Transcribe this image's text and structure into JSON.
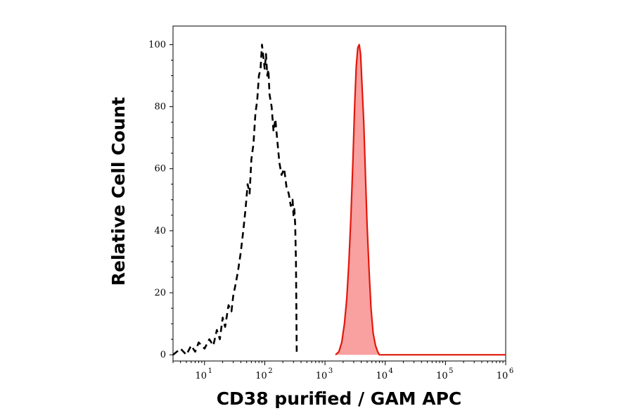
{
  "chart_data": {
    "type": "area",
    "xlabel": "CD38 purified / GAM APC",
    "ylabel": "Relative Cell Count",
    "x_scale": "log",
    "xlim": [
      3,
      1000000
    ],
    "ylim": [
      -2,
      106
    ],
    "grid": false,
    "legend": "none",
    "x_ticks": [
      {
        "base": "10",
        "exp": "1",
        "value": 10
      },
      {
        "base": "10",
        "exp": "2",
        "value": 100
      },
      {
        "base": "10",
        "exp": "3",
        "value": 1000
      },
      {
        "base": "10",
        "exp": "4",
        "value": 10000
      },
      {
        "base": "10",
        "exp": "5",
        "value": 100000
      },
      {
        "base": "10",
        "exp": "6",
        "value": 1000000
      }
    ],
    "y_ticks": [
      {
        "label": "0",
        "value": 0
      },
      {
        "label": "20",
        "value": 20
      },
      {
        "label": "40",
        "value": 40
      },
      {
        "label": "60",
        "value": 60
      },
      {
        "label": "80",
        "value": 80
      },
      {
        "label": "100",
        "value": 100
      }
    ],
    "series": [
      {
        "style": "dashed",
        "color": "#000000",
        "points": [
          [
            3,
            0
          ],
          [
            4,
            2
          ],
          [
            5,
            0
          ],
          [
            6,
            3
          ],
          [
            7,
            1
          ],
          [
            8,
            4
          ],
          [
            10,
            2
          ],
          [
            12,
            5
          ],
          [
            14,
            3
          ],
          [
            16,
            8
          ],
          [
            18,
            5
          ],
          [
            20,
            12
          ],
          [
            22,
            9
          ],
          [
            25,
            16
          ],
          [
            28,
            14
          ],
          [
            30,
            19
          ],
          [
            33,
            23
          ],
          [
            36,
            27
          ],
          [
            40,
            33
          ],
          [
            44,
            40
          ],
          [
            48,
            47
          ],
          [
            52,
            55
          ],
          [
            56,
            52
          ],
          [
            60,
            63
          ],
          [
            65,
            68
          ],
          [
            70,
            78
          ],
          [
            75,
            82
          ],
          [
            80,
            90
          ],
          [
            85,
            92
          ],
          [
            90,
            100
          ],
          [
            95,
            96
          ],
          [
            100,
            92
          ],
          [
            105,
            97
          ],
          [
            110,
            90
          ],
          [
            115,
            92
          ],
          [
            120,
            84
          ],
          [
            130,
            80
          ],
          [
            140,
            72
          ],
          [
            150,
            76
          ],
          [
            160,
            70
          ],
          [
            175,
            62
          ],
          [
            190,
            58
          ],
          [
            210,
            60
          ],
          [
            230,
            54
          ],
          [
            250,
            52
          ],
          [
            270,
            48
          ],
          [
            290,
            50
          ],
          [
            300,
            45
          ],
          [
            310,
            47
          ],
          [
            320,
            42
          ],
          [
            330,
            30
          ],
          [
            340,
            0
          ]
        ]
      },
      {
        "style": "filled",
        "color": "#e3170a",
        "fill": "#f9a0a0",
        "points": [
          [
            1500,
            0
          ],
          [
            1700,
            1
          ],
          [
            1900,
            4
          ],
          [
            2100,
            10
          ],
          [
            2300,
            18
          ],
          [
            2500,
            30
          ],
          [
            2700,
            45
          ],
          [
            2900,
            62
          ],
          [
            3100,
            80
          ],
          [
            3300,
            93
          ],
          [
            3500,
            99
          ],
          [
            3700,
            100
          ],
          [
            3900,
            97
          ],
          [
            4100,
            88
          ],
          [
            4400,
            75
          ],
          [
            4700,
            58
          ],
          [
            5000,
            42
          ],
          [
            5400,
            27
          ],
          [
            5800,
            15
          ],
          [
            6300,
            7
          ],
          [
            6900,
            3
          ],
          [
            7500,
            1
          ],
          [
            8000,
            0
          ],
          [
            1000000,
            0
          ]
        ]
      }
    ]
  }
}
